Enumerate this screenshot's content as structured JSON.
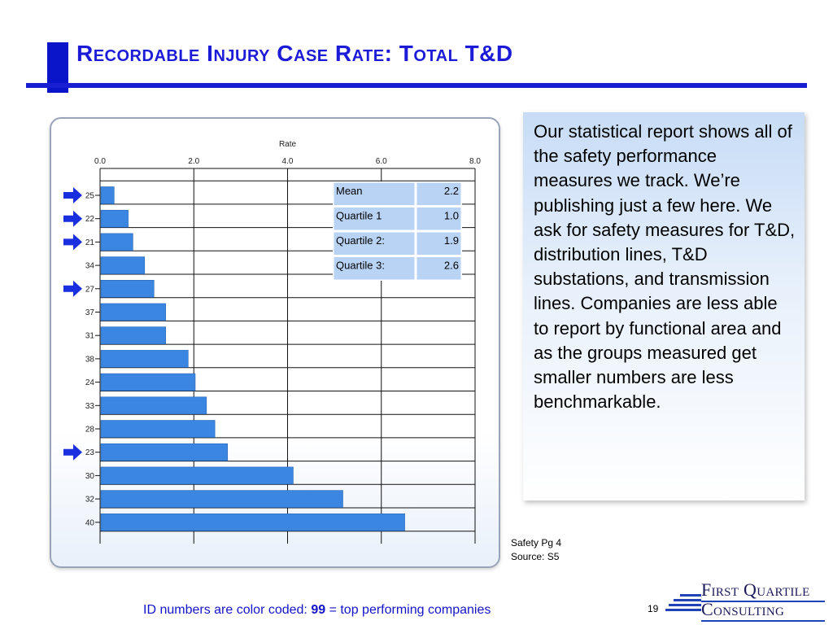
{
  "slide": {
    "title": "Recordable Injury Case Rate: Total T&D",
    "body_text": "Our statistical report shows all of the safety performance measures we track.  We’re publishing just a few here.  We ask for safety measures for T&D, distribution lines, T&D substations, and transmission lines. Companies are less able to report by functional area and as the groups measured get smaller numbers are less benchmarkable.",
    "note_line1": "Safety Pg 4",
    "note_line2": "Source: S5",
    "footer_prefix": "ID numbers are color coded: ",
    "footer_bold": "99",
    "footer_suffix": " = top performing companies",
    "page_number": "19",
    "accent_color": "#1b1bd8"
  },
  "logo": {
    "line1": "First Quartile",
    "line2": "Consulting"
  },
  "stats_table": [
    {
      "label": "Mean",
      "value": "2.2"
    },
    {
      "label": "Quartile 1",
      "value": "1.0"
    },
    {
      "label": "Quartile 2:",
      "value": "1.9"
    },
    {
      "label": "Quartile 3:",
      "value": "2.6"
    }
  ],
  "chart_data": {
    "type": "bar",
    "orientation": "horizontal",
    "title": "Rate",
    "xlim": [
      0,
      8
    ],
    "ticks": [
      "0.0",
      "2.0",
      "4.0",
      "6.0",
      "8.0"
    ],
    "grid": true,
    "bar_color": "#3a86e0",
    "highlight_marker": "arrow-right",
    "highlight_color": "#1a2fe0",
    "categories": [
      "25",
      "22",
      "21",
      "34",
      "27",
      "37",
      "31",
      "38",
      "24",
      "33",
      "28",
      "23",
      "30",
      "32",
      "40"
    ],
    "values": [
      0.3,
      0.6,
      0.7,
      0.95,
      1.15,
      1.4,
      1.4,
      1.88,
      2.03,
      2.27,
      2.45,
      2.72,
      4.12,
      5.18,
      6.5
    ],
    "highlighted": [
      "25",
      "22",
      "21",
      "27",
      "23"
    ]
  }
}
